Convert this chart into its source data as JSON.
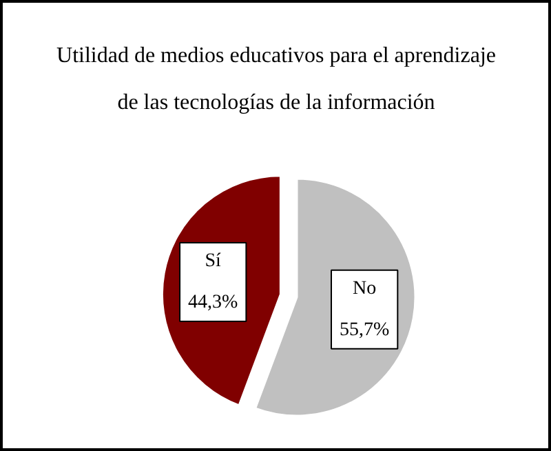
{
  "chart_data": {
    "type": "pie",
    "title": "Utilidad de medios educativos para el aprendizaje\nde las tecnologías de la información",
    "categories": [
      "Sí",
      "No"
    ],
    "values": [
      44.3,
      55.7
    ],
    "colors": [
      "#800000",
      "#c0c0c0"
    ],
    "value_labels": [
      "44,3%",
      "55,7%"
    ]
  }
}
